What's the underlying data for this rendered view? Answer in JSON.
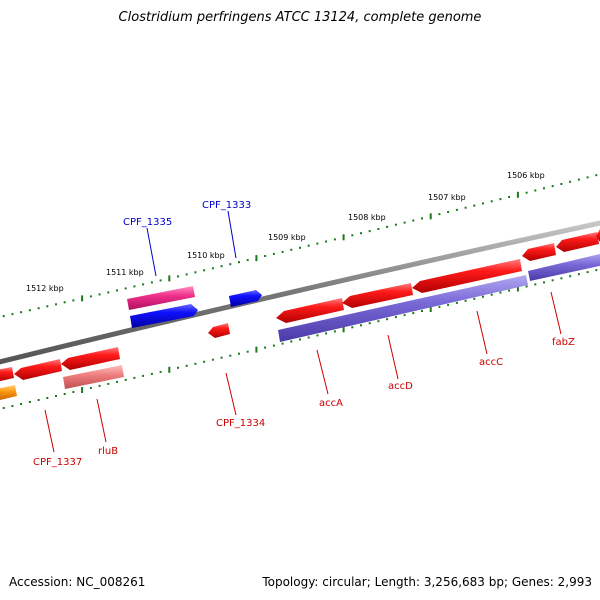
{
  "title": "Clostridium perfringens ATCC 13124, complete genome",
  "footer": {
    "accession_label": "Accession:",
    "accession": "NC_008261",
    "topology_label": "Topology:",
    "topology": "circular",
    "length_label": "Length:",
    "length": "3,256,683 bp",
    "genes_label": "Genes:",
    "genes": "2,993"
  },
  "scale": {
    "unit": "kbp",
    "ticks": [
      "1506 kbp",
      "1507 kbp",
      "1508 kbp",
      "1509 kbp",
      "1510 kbp",
      "1511 kbp",
      "1512 kbp"
    ]
  },
  "colors": {
    "backbone": "#7a7a7a",
    "tick": "#1a7a1a",
    "label_leading": "#0000cc",
    "label_lagging": "#cc0000",
    "gene_red": "#ee0000",
    "gene_blue": "#0000ee",
    "gene_pink": "#ee2288",
    "gene_purple": "#7766cc",
    "gene_salmon": "#ee7777",
    "gene_orange": "#ff9900"
  },
  "genes": [
    {
      "name": "CPF_1335",
      "strand": "leading"
    },
    {
      "name": "CPF_1333",
      "strand": "leading"
    },
    {
      "name": "CPF_1334",
      "strand": "lagging"
    },
    {
      "name": "accA",
      "strand": "lagging"
    },
    {
      "name": "accD",
      "strand": "lagging"
    },
    {
      "name": "accC",
      "strand": "lagging"
    },
    {
      "name": "fabZ",
      "strand": "lagging"
    },
    {
      "name": "CPF_1337",
      "strand": "lagging"
    },
    {
      "name": "rluB",
      "strand": "lagging"
    }
  ]
}
